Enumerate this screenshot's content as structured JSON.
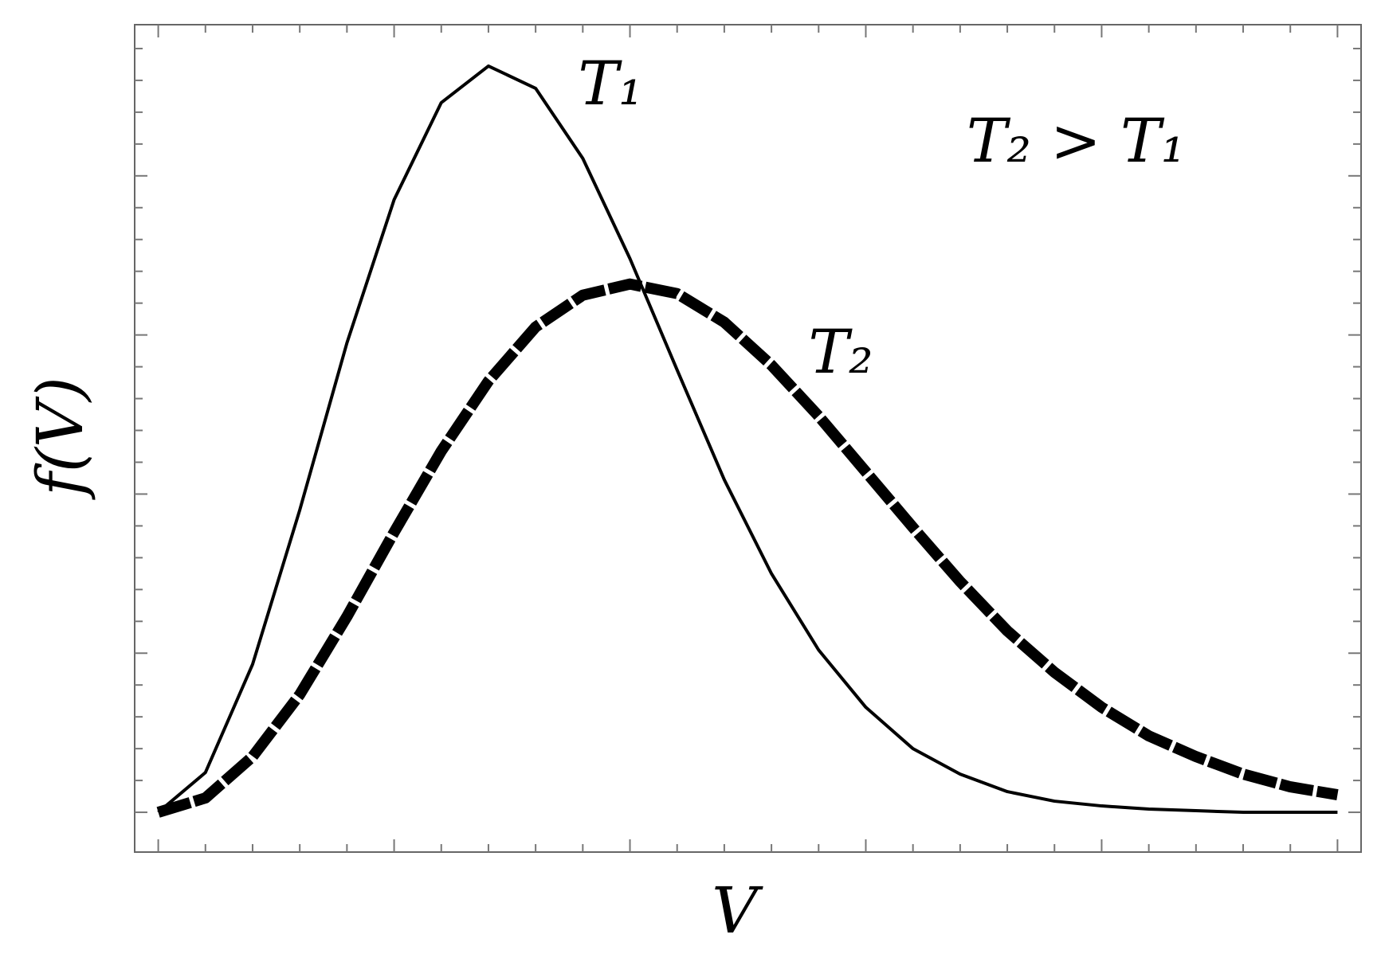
{
  "chart_data": {
    "type": "line",
    "x_label": "V",
    "y_label": "f(V)",
    "annotations": [
      "T₂ > T₁"
    ],
    "x": [
      0,
      0.2,
      0.4,
      0.6,
      0.8,
      1.0,
      1.2,
      1.4,
      1.6,
      1.8,
      2.0,
      2.2,
      2.4,
      2.6,
      2.8,
      3.0,
      3.2,
      3.4,
      3.6,
      3.8,
      4.0,
      4.2,
      4.4,
      4.6,
      4.8,
      5.0
    ],
    "series": [
      {
        "name": "T₁",
        "color": "#000000",
        "line_style": "solid",
        "values": [
          0,
          0.25,
          0.93,
          1.9,
          2.95,
          3.85,
          4.46,
          4.69,
          4.55,
          4.11,
          3.48,
          2.78,
          2.09,
          1.5,
          1.02,
          0.66,
          0.4,
          0.24,
          0.13,
          0.07,
          0.04,
          0.02,
          0.01,
          0,
          0,
          0
        ]
      },
      {
        "name": "T₂",
        "color": "#000000",
        "line_style": "dashed",
        "values": [
          0,
          0.09,
          0.35,
          0.74,
          1.23,
          1.76,
          2.27,
          2.71,
          3.05,
          3.25,
          3.32,
          3.26,
          3.08,
          2.81,
          2.49,
          2.14,
          1.79,
          1.45,
          1.14,
          0.88,
          0.66,
          0.48,
          0.35,
          0.24,
          0.16,
          0.11
        ]
      }
    ],
    "xlim": [
      -0.1,
      5.1
    ],
    "ylim": [
      -0.25,
      4.95
    ],
    "xticks": [
      0,
      1,
      2,
      3,
      4,
      5
    ],
    "yticks": [
      0,
      1,
      2,
      3,
      4
    ],
    "xminorticks": [
      0.2,
      0.4,
      0.6,
      0.8,
      1.2,
      1.4,
      1.6,
      1.8,
      2.2,
      2.4,
      2.6,
      2.8,
      3.2,
      3.4,
      3.6,
      3.8,
      4.2,
      4.4,
      4.6,
      4.8
    ],
    "yminorticks": [
      0.2,
      0.4,
      0.6,
      0.8,
      1.2,
      1.4,
      1.6,
      1.8,
      2.2,
      2.4,
      2.6,
      2.8,
      3.2,
      3.4,
      3.6,
      3.8,
      4.2,
      4.4,
      4.6,
      4.8
    ],
    "grid": false
  }
}
